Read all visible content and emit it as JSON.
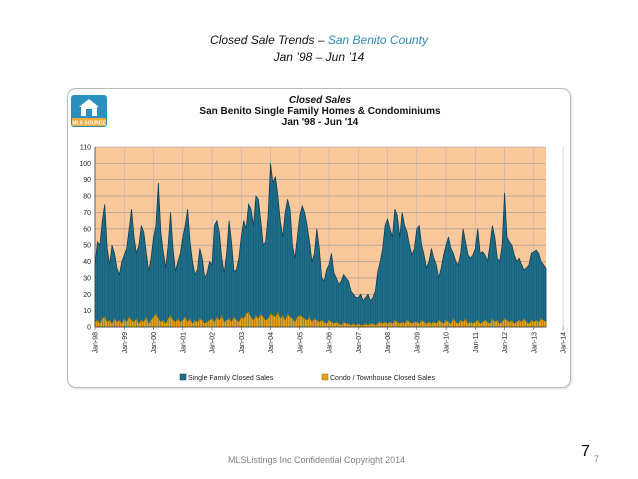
{
  "slide": {
    "title_main": "Closed Sale Trends – ",
    "title_accent": "San Benito County",
    "subtitle": "Jan ’98 – Jun ’14",
    "footer": "MLSListings Inc Confidential Copyright 2014",
    "page_big": "7",
    "page_small": "7"
  },
  "logo": {
    "text": "MLS SOURCE"
  },
  "colors": {
    "plot_bg": "#fbc89b",
    "single_family": "#1f6f8b",
    "single_family_edge": "#0c3548",
    "condo": "#e8a21a",
    "accent": "#2e8bc0"
  },
  "chart_data": {
    "type": "area",
    "title": "Closed Sales",
    "subtitle": "San Benito Single Family Homes & Condominiums",
    "subtitle2": "Jan '98 - Jun '14",
    "xlabel": "",
    "ylabel": "",
    "ylim": [
      0,
      110
    ],
    "yticks": [
      0,
      10,
      20,
      30,
      40,
      50,
      60,
      70,
      80,
      90,
      100,
      110
    ],
    "x_start": "Jan-98",
    "x_end": "Jun-14",
    "x_tick_labels": [
      "Jan-98",
      "Jan-99",
      "Jan-00",
      "Jan-01",
      "Jan-02",
      "Jan-03",
      "Jan-04",
      "Jan-05",
      "Jan-06",
      "Jan-07",
      "Jan-08",
      "Jan-09",
      "Jan-10",
      "Jan-11",
      "Jan-12",
      "Jan-13",
      "Jan-14"
    ],
    "grid": true,
    "legend_position": "bottom",
    "series": [
      {
        "name": "Single Family Closed Sales",
        "values": [
          38,
          52,
          50,
          65,
          75,
          48,
          38,
          50,
          45,
          36,
          32,
          40,
          44,
          48,
          60,
          72,
          55,
          45,
          50,
          62,
          58,
          46,
          34,
          42,
          55,
          62,
          88,
          58,
          46,
          36,
          50,
          70,
          48,
          34,
          40,
          45,
          55,
          62,
          72,
          52,
          40,
          32,
          35,
          48,
          42,
          30,
          33,
          40,
          38,
          62,
          65,
          58,
          42,
          33,
          45,
          65,
          52,
          34,
          35,
          42,
          55,
          65,
          60,
          75,
          72,
          62,
          80,
          78,
          65,
          50,
          52,
          68,
          100,
          88,
          92,
          80,
          65,
          55,
          70,
          78,
          72,
          50,
          42,
          55,
          68,
          74,
          70,
          62,
          52,
          40,
          45,
          60,
          48,
          30,
          28,
          35,
          38,
          45,
          33,
          30,
          26,
          28,
          32,
          30,
          28,
          22,
          20,
          18,
          18,
          20,
          16,
          18,
          20,
          16,
          18,
          22,
          34,
          40,
          48,
          62,
          66,
          60,
          55,
          72,
          68,
          55,
          70,
          62,
          58,
          50,
          44,
          48,
          60,
          62,
          50,
          44,
          36,
          40,
          48,
          42,
          38,
          30,
          36,
          44,
          50,
          55,
          48,
          45,
          40,
          38,
          45,
          60,
          52,
          44,
          42,
          44,
          48,
          60,
          45,
          46,
          44,
          40,
          50,
          62,
          55,
          42,
          40,
          50,
          82,
          55,
          52,
          50,
          44,
          40,
          42,
          38,
          35,
          36,
          38,
          45,
          46,
          47,
          45,
          40,
          38,
          36
        ]
      },
      {
        "name": "Condo  /  Townhouse Closed Sales",
        "values": [
          3,
          4,
          2,
          5,
          6,
          3,
          4,
          2,
          5,
          3,
          4,
          2,
          5,
          3,
          6,
          4,
          3,
          5,
          2,
          4,
          3,
          6,
          2,
          4,
          6,
          8,
          5,
          3,
          4,
          2,
          5,
          7,
          4,
          3,
          5,
          3,
          4,
          6,
          3,
          5,
          2,
          4,
          3,
          5,
          4,
          2,
          3,
          4,
          5,
          3,
          6,
          4,
          7,
          3,
          4,
          5,
          3,
          6,
          4,
          3,
          6,
          5,
          8,
          9,
          6,
          4,
          7,
          5,
          8,
          6,
          4,
          5,
          8,
          7,
          6,
          9,
          5,
          7,
          4,
          8,
          6,
          5,
          3,
          6,
          7,
          6,
          5,
          4,
          6,
          3,
          5,
          4,
          3,
          4,
          3,
          2,
          4,
          3,
          2,
          3,
          2,
          1,
          3,
          2,
          2,
          1,
          2,
          1,
          2,
          1,
          1,
          2,
          1,
          2,
          2,
          1,
          2,
          3,
          2,
          3,
          2,
          3,
          2,
          4,
          3,
          2,
          3,
          2,
          4,
          3,
          2,
          3,
          3,
          2,
          4,
          3,
          2,
          3,
          2,
          3,
          2,
          4,
          3,
          2,
          4,
          3,
          2,
          5,
          3,
          2,
          4,
          3,
          5,
          2,
          3,
          2,
          3,
          4,
          2,
          3,
          4,
          3,
          2,
          5,
          3,
          4,
          2,
          3,
          5,
          4,
          3,
          4,
          2,
          3,
          4,
          3,
          5,
          3,
          2,
          4,
          3,
          4,
          3,
          5,
          4,
          3
        ]
      }
    ]
  }
}
